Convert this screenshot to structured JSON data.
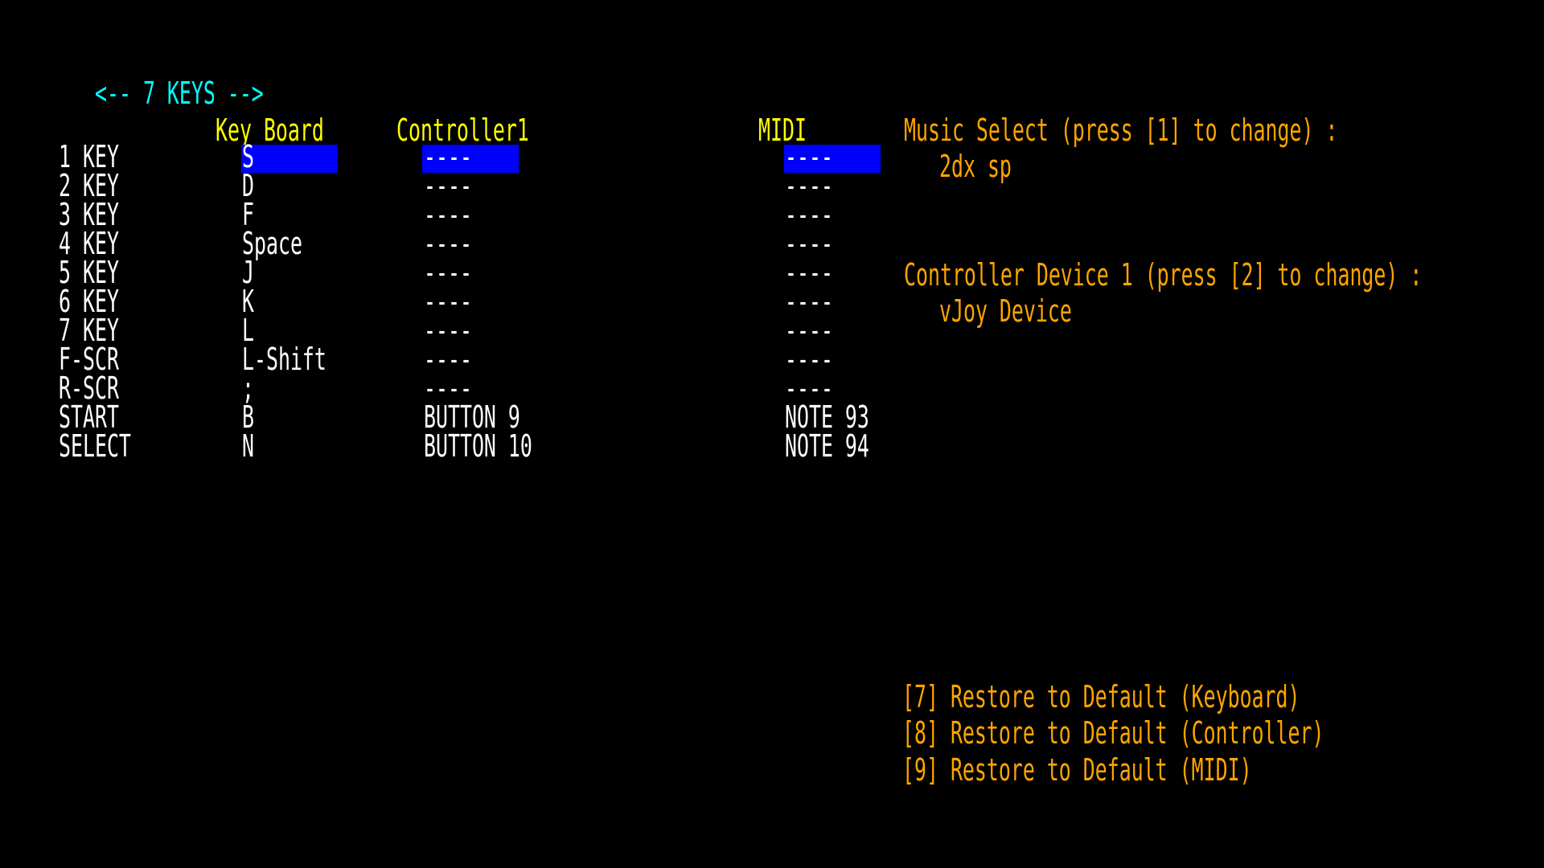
{
  "title": "<-- 7 KEYS -->",
  "headers": {
    "keyboard": "Key Board",
    "controller": "Controller1",
    "midi": "MIDI"
  },
  "rows": [
    {
      "label": "1 KEY",
      "keyboard": "S",
      "controller": "----",
      "midi": "----",
      "selected": true
    },
    {
      "label": "2 KEY",
      "keyboard": "D",
      "controller": "----",
      "midi": "----"
    },
    {
      "label": "3 KEY",
      "keyboard": "F",
      "controller": "----",
      "midi": "----"
    },
    {
      "label": "4 KEY",
      "keyboard": "Space",
      "controller": "----",
      "midi": "----"
    },
    {
      "label": "5 KEY",
      "keyboard": "J",
      "controller": "----",
      "midi": "----"
    },
    {
      "label": "6 KEY",
      "keyboard": "K",
      "controller": "----",
      "midi": "----"
    },
    {
      "label": "7 KEY",
      "keyboard": "L",
      "controller": "----",
      "midi": "----"
    },
    {
      "label": "F-SCR",
      "keyboard": "L-Shift",
      "controller": "----",
      "midi": "----"
    },
    {
      "label": "R-SCR",
      "keyboard": ";",
      "controller": "----",
      "midi": "----"
    },
    {
      "label": "START",
      "keyboard": "B",
      "controller": "BUTTON 9",
      "midi": "NOTE 93"
    },
    {
      "label": "SELECT",
      "keyboard": "N",
      "controller": "BUTTON 10",
      "midi": "NOTE 94"
    }
  ],
  "panel": {
    "music_select_label": "Music Select (press [1] to change) :",
    "music_select_value": "2dx sp",
    "controller_device_label": "Controller Device 1 (press [2] to change) :",
    "controller_device_value": "vJoy Device"
  },
  "restore": [
    "[7] Restore to Default (Keyboard)",
    "[8] Restore to Default (Controller)",
    "[9] Restore to Default (MIDI)"
  ],
  "colors": {
    "title": "#00ffff",
    "header": "#ffff00",
    "info": "#ffa500",
    "text": "#ffffff",
    "selection": "#0000ff"
  }
}
